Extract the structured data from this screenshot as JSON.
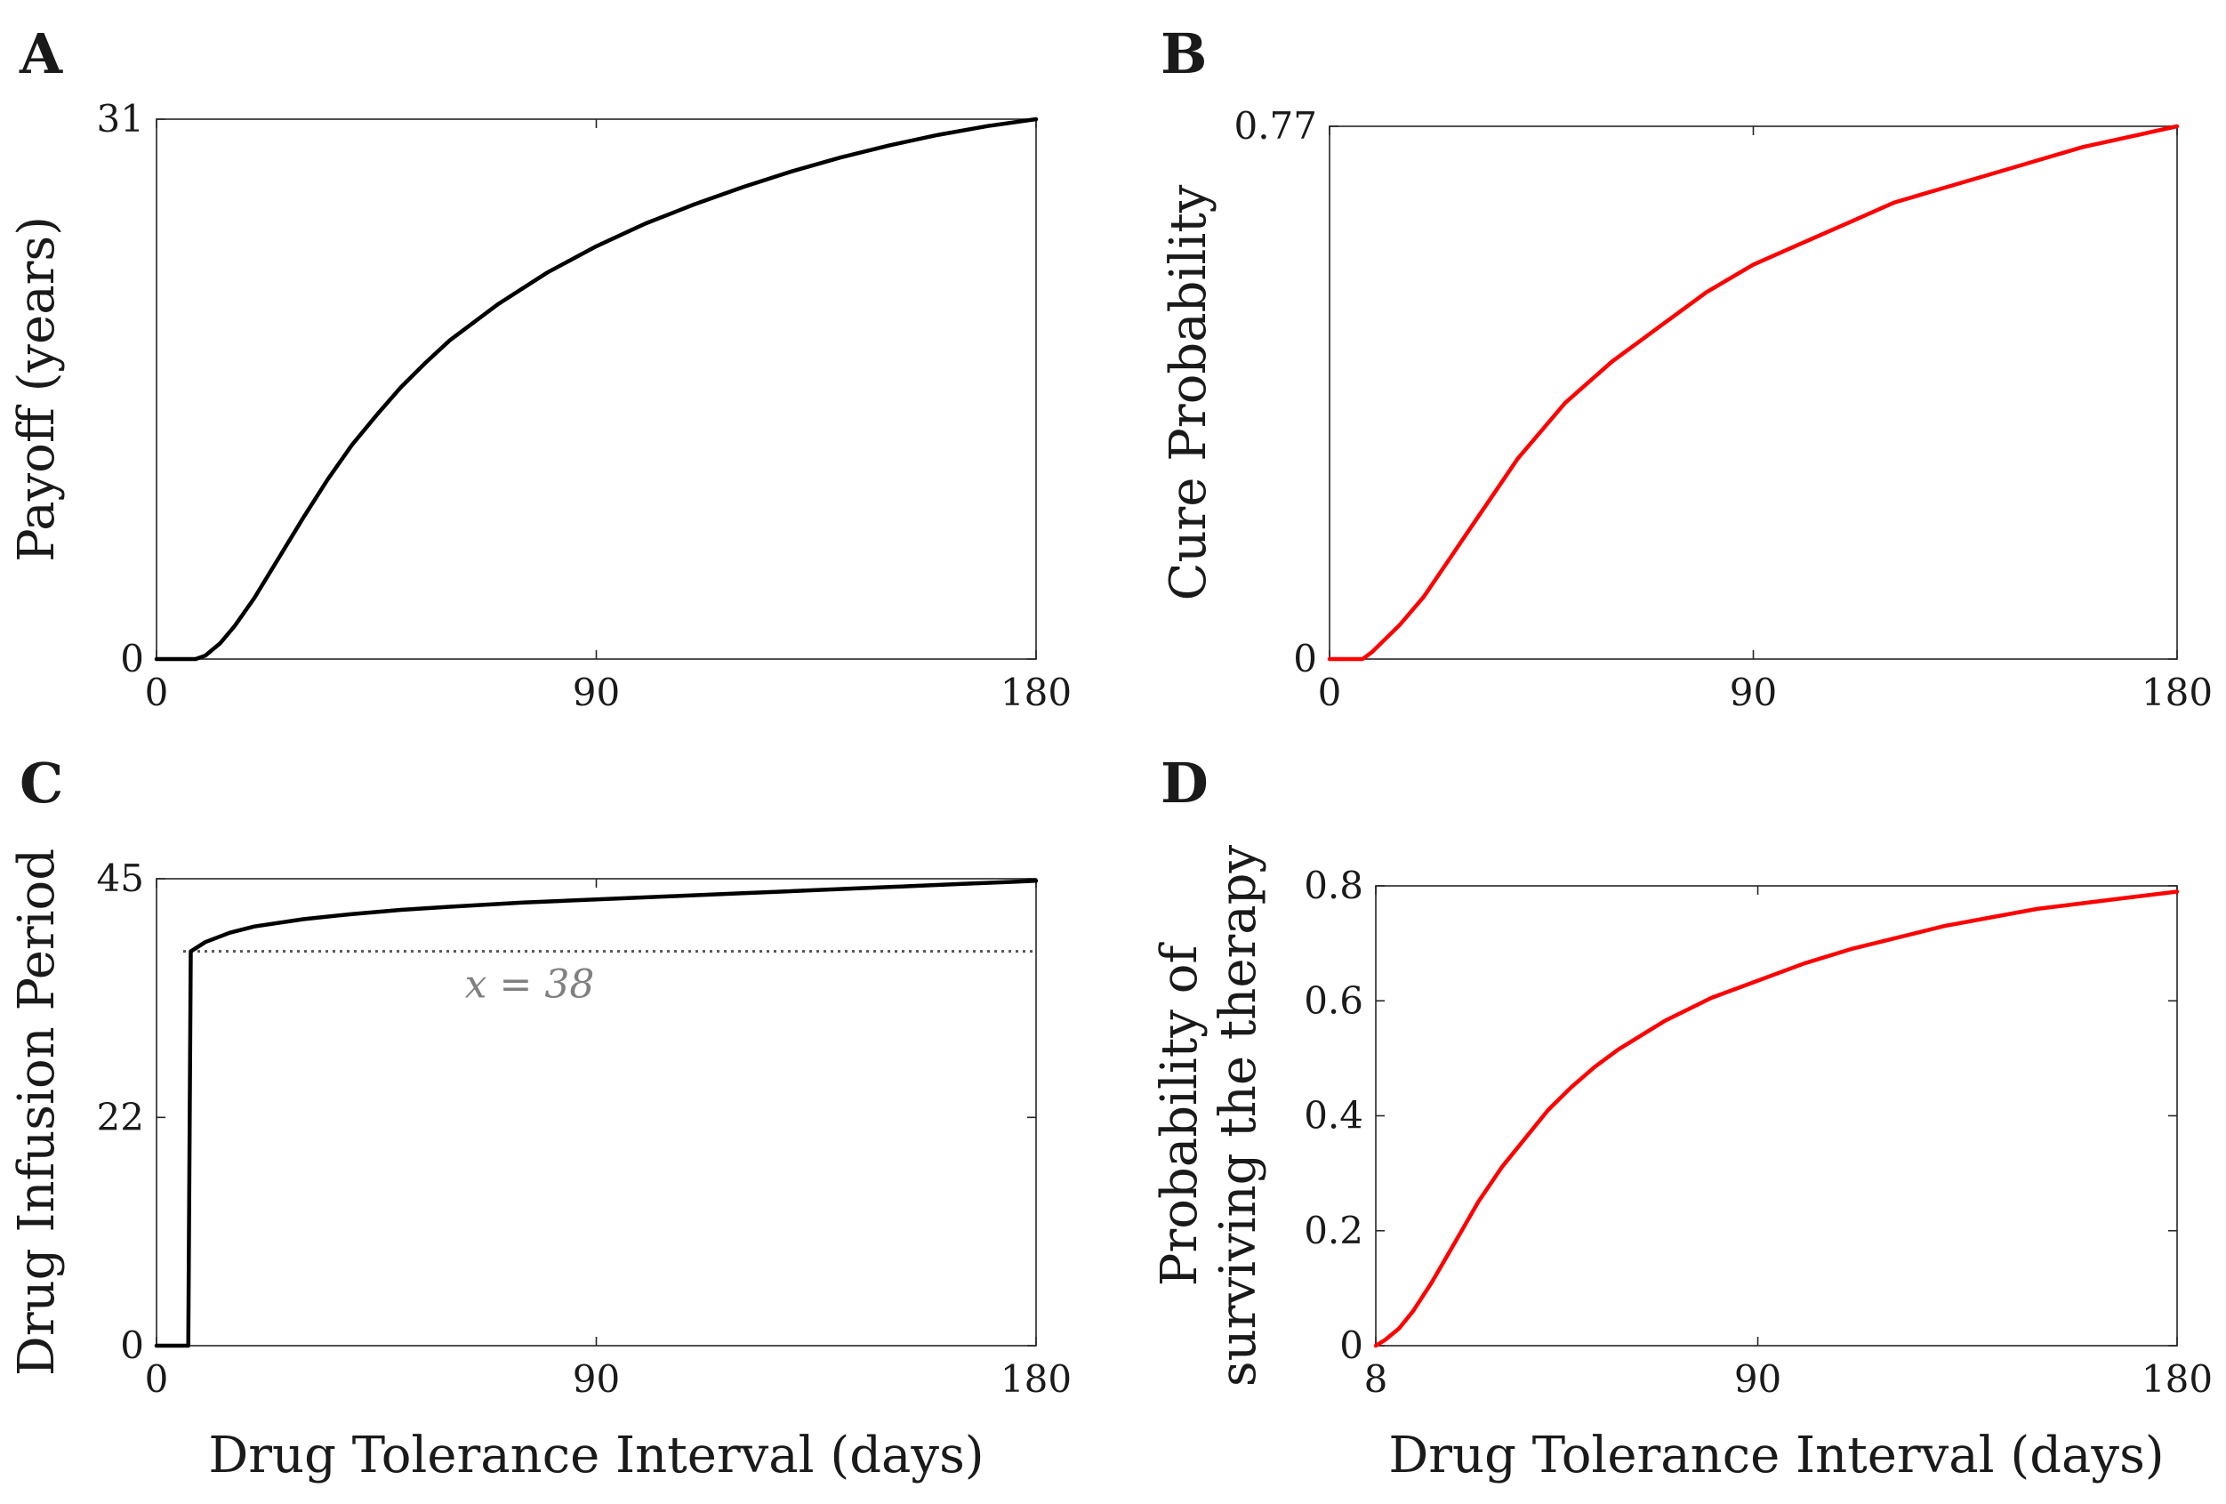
{
  "chart_data": [
    {
      "panel": "A",
      "type": "line",
      "title": "",
      "xlabel": "",
      "ylabel": "Payoff (years)",
      "xlim": [
        0,
        180
      ],
      "ylim": [
        0,
        31
      ],
      "xticks": [
        0,
        90,
        180
      ],
      "yticks": [
        0,
        31
      ],
      "series": [
        {
          "name": "Payoff",
          "color": "#000000",
          "x": [
            0,
            4,
            8,
            10,
            13,
            16,
            20,
            25,
            30,
            35,
            40,
            45,
            50,
            55,
            60,
            70,
            80,
            90,
            100,
            110,
            120,
            130,
            140,
            150,
            160,
            170,
            180
          ],
          "y": [
            0,
            0,
            0,
            0.2,
            0.9,
            1.9,
            3.5,
            5.8,
            8.1,
            10.3,
            12.3,
            14.0,
            15.6,
            17.0,
            18.3,
            20.4,
            22.2,
            23.7,
            25.0,
            26.1,
            27.1,
            28.0,
            28.8,
            29.5,
            30.1,
            30.6,
            31.0
          ]
        }
      ]
    },
    {
      "panel": "B",
      "type": "line",
      "title": "",
      "xlabel": "",
      "ylabel": "Cure Probability",
      "xlim": [
        0,
        180
      ],
      "ylim": [
        0,
        0.77
      ],
      "xticks": [
        0,
        90,
        180
      ],
      "yticks": [
        0,
        0.77
      ],
      "ytick_labels": [
        "0",
        "0.77"
      ],
      "series": [
        {
          "name": "Cure probability",
          "color": "#ff0000",
          "x": [
            0,
            4,
            7,
            9,
            12,
            15,
            20,
            25,
            30,
            35,
            40,
            45,
            50,
            55,
            60,
            70,
            80,
            90,
            100,
            110,
            120,
            130,
            140,
            150,
            160,
            170,
            180
          ],
          "y": [
            0,
            0,
            0,
            0.01,
            0.03,
            0.05,
            0.09,
            0.14,
            0.19,
            0.24,
            0.29,
            0.33,
            0.37,
            0.4,
            0.43,
            0.48,
            0.53,
            0.57,
            0.6,
            0.63,
            0.66,
            0.68,
            0.7,
            0.72,
            0.74,
            0.755,
            0.77
          ]
        }
      ]
    },
    {
      "panel": "C",
      "type": "line",
      "title": "",
      "xlabel": "Drug Tolerance Interval (days)",
      "ylabel": "Drug Infusion Period",
      "xlim": [
        0,
        180
      ],
      "ylim": [
        0,
        45
      ],
      "xticks": [
        0,
        90,
        180
      ],
      "yticks": [
        0,
        22,
        45
      ],
      "reference_line": {
        "y": 38,
        "style": "dotted",
        "label": "x = 38"
      },
      "series": [
        {
          "name": "Drug infusion period",
          "color": "#000000",
          "x": [
            0,
            6,
            6.5,
            7,
            8,
            10,
            15,
            20,
            30,
            40,
            50,
            60,
            75,
            90,
            105,
            120,
            135,
            150,
            165,
            180
          ],
          "y": [
            0,
            0,
            0,
            38,
            38.3,
            38.9,
            39.8,
            40.4,
            41.1,
            41.6,
            42.0,
            42.3,
            42.7,
            43.0,
            43.3,
            43.6,
            43.9,
            44.2,
            44.5,
            44.8
          ]
        }
      ]
    },
    {
      "panel": "D",
      "type": "line",
      "title": "",
      "xlabel": "Drug Tolerance Interval (days)",
      "ylabel_lines": [
        "Probability of",
        "surviving the therapy"
      ],
      "xlim": [
        8,
        180
      ],
      "ylim": [
        0,
        0.8
      ],
      "xticks": [
        8,
        90,
        180
      ],
      "yticks": [
        0,
        0.2,
        0.4,
        0.6,
        0.8
      ],
      "ytick_labels": [
        "0",
        "0.2",
        "0.4",
        "0.6",
        "0.8"
      ],
      "series": [
        {
          "name": "Survival probability",
          "color": "#ff0000",
          "x": [
            8,
            10,
            13,
            16,
            20,
            25,
            30,
            35,
            40,
            45,
            50,
            55,
            60,
            70,
            80,
            90,
            100,
            110,
            120,
            130,
            140,
            150,
            160,
            170,
            180
          ],
          "y": [
            0,
            0.01,
            0.03,
            0.06,
            0.11,
            0.18,
            0.25,
            0.31,
            0.36,
            0.41,
            0.45,
            0.485,
            0.515,
            0.565,
            0.605,
            0.635,
            0.665,
            0.69,
            0.71,
            0.73,
            0.745,
            0.76,
            0.77,
            0.78,
            0.79
          ]
        }
      ]
    }
  ]
}
